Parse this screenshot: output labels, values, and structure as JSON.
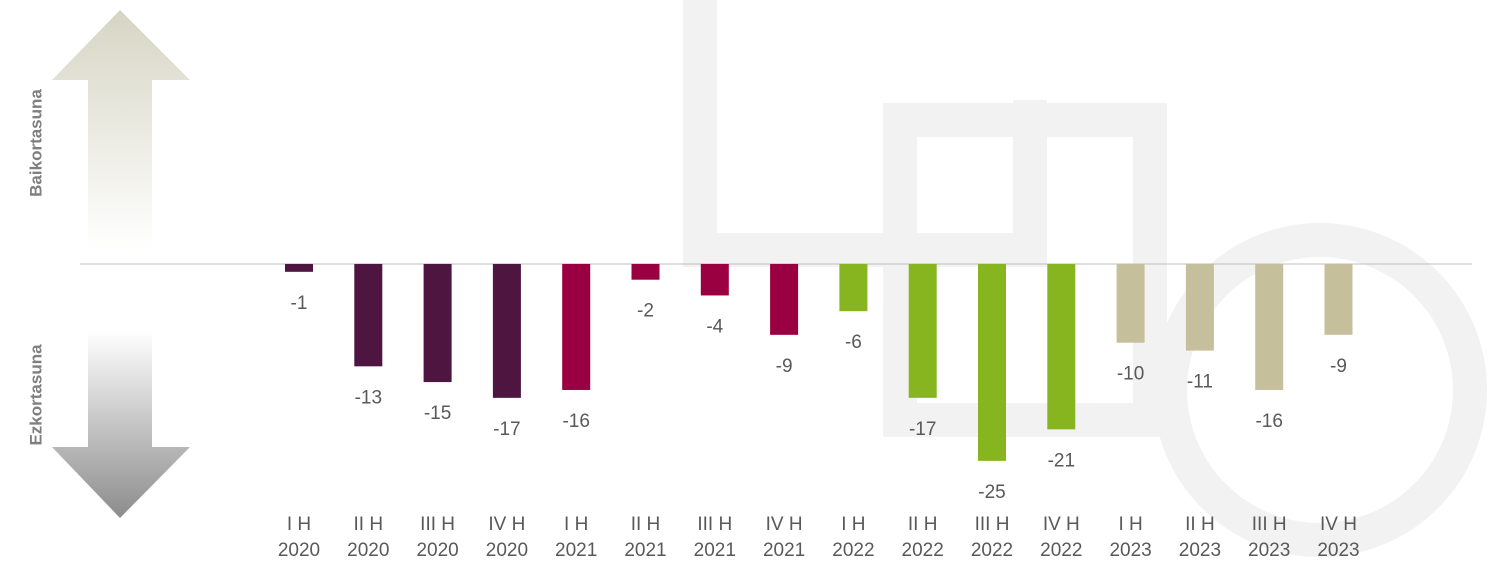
{
  "chart_data": {
    "type": "bar",
    "y_label_top": "Baikortasuna",
    "y_label_bottom": "Ezkortasuna",
    "categories": [
      "I H\n2020",
      "II H\n2020",
      "III H\n2020",
      "IV H\n2020",
      "I H\n2021",
      "II H\n2021",
      "III H\n2021",
      "IV H\n2021",
      "I H\n2022",
      "II H\n2022",
      "III H\n2022",
      "IV H\n2022",
      "I H\n2023",
      "II H\n2023",
      "III H\n2023",
      "IV H\n2023"
    ],
    "values": [
      -1,
      -13,
      -15,
      -17,
      -16,
      -2,
      -4,
      -9,
      -6,
      -17,
      -25,
      -21,
      -10,
      -11,
      -16,
      -9
    ],
    "colors": [
      "#4d1540",
      "#4d1540",
      "#4d1540",
      "#4d1540",
      "#9a0041",
      "#9a0041",
      "#9a0041",
      "#9a0041",
      "#86b520",
      "#86b520",
      "#86b520",
      "#86b520",
      "#c5bf9b",
      "#c5bf9b",
      "#c5bf9b",
      "#c5bf9b"
    ],
    "ylim": [
      -32,
      33
    ]
  }
}
